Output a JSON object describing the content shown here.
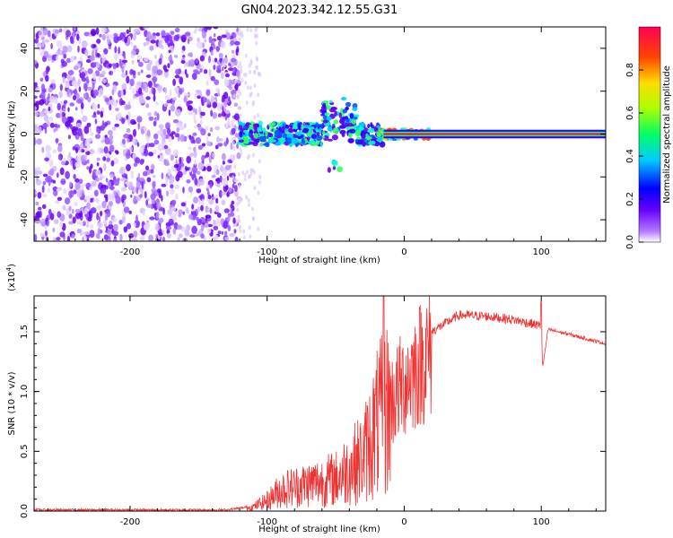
{
  "title": "GN04.2023.342.12.55.G31",
  "chart_data": [
    {
      "type": "heatmap",
      "xlabel": "Height of straight line (km)",
      "ylabel": "Frequency (Hz)",
      "xlim": [
        -270,
        147
      ],
      "ylim": [
        -50,
        50
      ],
      "xticks": [
        -200,
        -100,
        0,
        100
      ],
      "yticks": [
        -40,
        -20,
        0,
        20,
        40
      ],
      "colorbar": {
        "label": "Normalized spectral amplitude",
        "range": [
          0,
          1
        ],
        "ticks": [
          0.0,
          0.2,
          0.4,
          0.6,
          0.8
        ],
        "colormap": [
          "#ffffff",
          "#9933ff",
          "#0000ff",
          "#00ffff",
          "#00ff00",
          "#ffff00",
          "#ff8800",
          "#ff0000",
          "#ff0066"
        ]
      },
      "regions": [
        {
          "x": [
            -270,
            -120
          ],
          "y": [
            -50,
            50
          ],
          "amplitude": 0.08,
          "note": "scattered noise"
        },
        {
          "x": [
            -120,
            -15
          ],
          "y": [
            -10,
            15
          ],
          "amplitude": 0.3,
          "note": "signal onset"
        },
        {
          "x": [
            -15,
            147
          ],
          "y": [
            -1.5,
            1.5
          ],
          "amplitude": 0.9,
          "note": "steady tone at 0 Hz"
        }
      ]
    },
    {
      "type": "line",
      "xlabel": "Height of straight line (km)",
      "ylabel": "SNR (10 * v/v)",
      "multiplier": "(x10",
      "multiplier_exp": "4",
      "multiplier_close": ")",
      "xlim": [
        -270,
        147
      ],
      "ylim": [
        0,
        1.8
      ],
      "xticks": [
        -200,
        -100,
        0,
        100
      ],
      "yticks": [
        0.0,
        0.5,
        1.0,
        1.5
      ],
      "color": "#ee3333",
      "series": [
        {
          "x": [
            -270,
            -200,
            -130,
            -110,
            -100,
            -90,
            -70,
            -50,
            -30,
            -20,
            -10,
            0,
            20,
            40,
            60,
            80,
            100,
            101,
            105,
            120,
            147
          ],
          "y": [
            0.01,
            0.01,
            0.01,
            0.04,
            0.1,
            0.2,
            0.25,
            0.3,
            0.5,
            0.8,
            1.0,
            1.2,
            1.5,
            1.64,
            1.63,
            1.6,
            1.55,
            1.2,
            1.52,
            1.48,
            1.4
          ]
        }
      ]
    }
  ]
}
